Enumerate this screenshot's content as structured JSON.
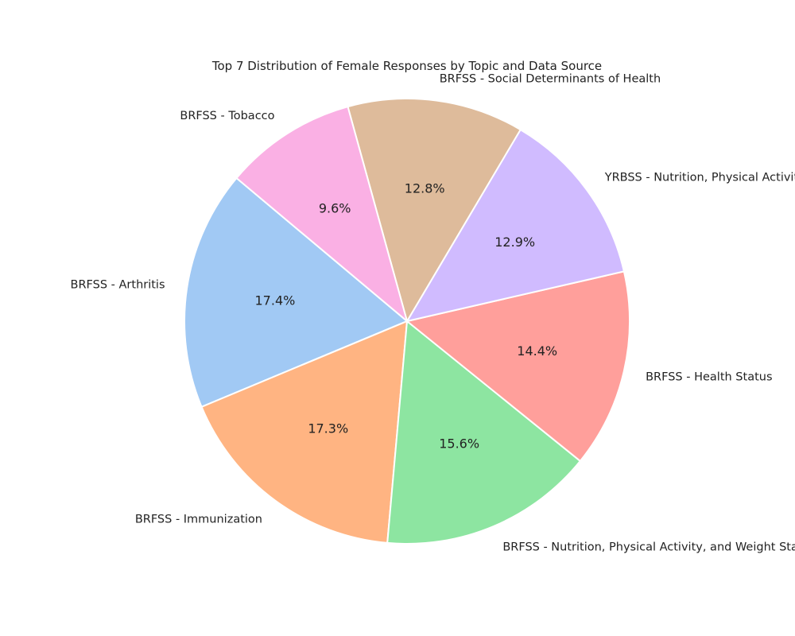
{
  "chart_data": {
    "type": "pie",
    "title": "Top 7 Distribution of Female Responses by Topic and Data Source",
    "slices": [
      {
        "label": "BRFSS - Arthritis",
        "percent": 17.4,
        "pct_label": "17.4%",
        "color": "#a1c9f4"
      },
      {
        "label": "BRFSS - Immunization",
        "percent": 17.3,
        "pct_label": "17.3%",
        "color": "#ffb482"
      },
      {
        "label": "BRFSS - Nutrition, Physical Activity, and Weight Status",
        "percent": 15.6,
        "pct_label": "15.6%",
        "color": "#8de5a1"
      },
      {
        "label": "BRFSS - Health Status",
        "percent": 14.4,
        "pct_label": "14.4%",
        "color": "#ff9f9b"
      },
      {
        "label": "YRBSS - Nutrition, Physical Activity",
        "percent": 12.9,
        "pct_label": "12.9%",
        "color": "#d0bbff"
      },
      {
        "label": "BRFSS - Social Determinants of Health",
        "percent": 12.8,
        "pct_label": "12.8%",
        "color": "#debb9b"
      },
      {
        "label": "BRFSS - Tobacco",
        "percent": 9.6,
        "pct_label": "9.6%",
        "color": "#fab0e4"
      }
    ]
  }
}
